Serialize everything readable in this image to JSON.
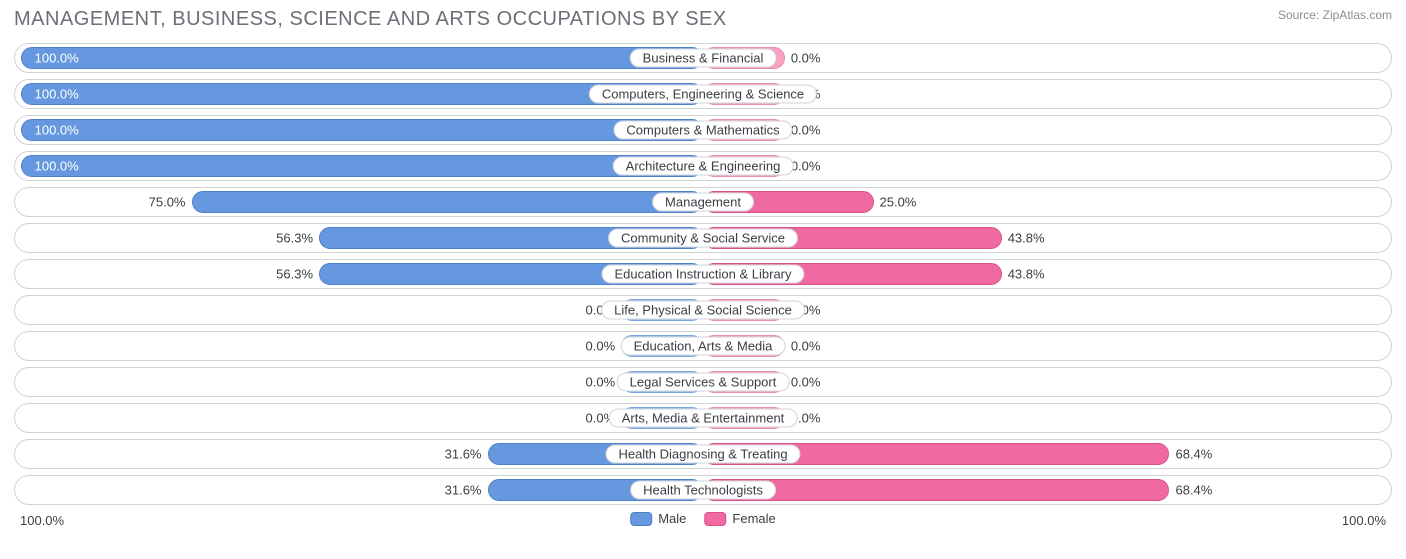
{
  "chart": {
    "title": "MANAGEMENT, BUSINESS, SCIENCE AND ARTS OCCUPATIONS BY SEX",
    "source_label": "Source:",
    "source_value": "ZipAtlas.com",
    "axis_left": "100.0%",
    "axis_right": "100.0%",
    "legend": {
      "male": "Male",
      "female": "Female"
    },
    "colors": {
      "male_fill": "#6698e0",
      "male_border": "#4f7fc7",
      "male_zero_fill": "#97bbef",
      "male_zero_border": "#7ea6de",
      "female_fill": "#ef6aa0",
      "female_border": "#d95089",
      "female_zero_fill": "#f6a3c3",
      "female_zero_border": "#e68caf",
      "row_border": "#cfd3d8",
      "text": "#3a3e44",
      "title_text": "#6b6f76",
      "source_text": "#888d93",
      "background": "#ffffff"
    },
    "zero_bar_width_pct": 6.0,
    "rows": [
      {
        "label": "Business & Financial",
        "male_pct": 100.0,
        "female_pct": 0.0,
        "male_text": "100.0%",
        "female_text": "0.0%",
        "male_zero": false,
        "female_zero": true
      },
      {
        "label": "Computers, Engineering & Science",
        "male_pct": 100.0,
        "female_pct": 0.0,
        "male_text": "100.0%",
        "female_text": "0.0%",
        "male_zero": false,
        "female_zero": true
      },
      {
        "label": "Computers & Mathematics",
        "male_pct": 100.0,
        "female_pct": 0.0,
        "male_text": "100.0%",
        "female_text": "0.0%",
        "male_zero": false,
        "female_zero": true
      },
      {
        "label": "Architecture & Engineering",
        "male_pct": 100.0,
        "female_pct": 0.0,
        "male_text": "100.0%",
        "female_text": "0.0%",
        "male_zero": false,
        "female_zero": true
      },
      {
        "label": "Management",
        "male_pct": 75.0,
        "female_pct": 25.0,
        "male_text": "75.0%",
        "female_text": "25.0%",
        "male_zero": false,
        "female_zero": false
      },
      {
        "label": "Community & Social Service",
        "male_pct": 56.3,
        "female_pct": 43.8,
        "male_text": "56.3%",
        "female_text": "43.8%",
        "male_zero": false,
        "female_zero": false
      },
      {
        "label": "Education Instruction & Library",
        "male_pct": 56.3,
        "female_pct": 43.8,
        "male_text": "56.3%",
        "female_text": "43.8%",
        "male_zero": false,
        "female_zero": false
      },
      {
        "label": "Life, Physical & Social Science",
        "male_pct": 0.0,
        "female_pct": 0.0,
        "male_text": "0.0%",
        "female_text": "0.0%",
        "male_zero": true,
        "female_zero": true
      },
      {
        "label": "Education, Arts & Media",
        "male_pct": 0.0,
        "female_pct": 0.0,
        "male_text": "0.0%",
        "female_text": "0.0%",
        "male_zero": true,
        "female_zero": true
      },
      {
        "label": "Legal Services & Support",
        "male_pct": 0.0,
        "female_pct": 0.0,
        "male_text": "0.0%",
        "female_text": "0.0%",
        "male_zero": true,
        "female_zero": true
      },
      {
        "label": "Arts, Media & Entertainment",
        "male_pct": 0.0,
        "female_pct": 0.0,
        "male_text": "0.0%",
        "female_text": "0.0%",
        "male_zero": true,
        "female_zero": true
      },
      {
        "label": "Health Diagnosing & Treating",
        "male_pct": 31.6,
        "female_pct": 68.4,
        "male_text": "31.6%",
        "female_text": "68.4%",
        "male_zero": false,
        "female_zero": false
      },
      {
        "label": "Health Technologists",
        "male_pct": 31.6,
        "female_pct": 68.4,
        "male_text": "31.6%",
        "female_text": "68.4%",
        "male_zero": false,
        "female_zero": false
      }
    ]
  }
}
